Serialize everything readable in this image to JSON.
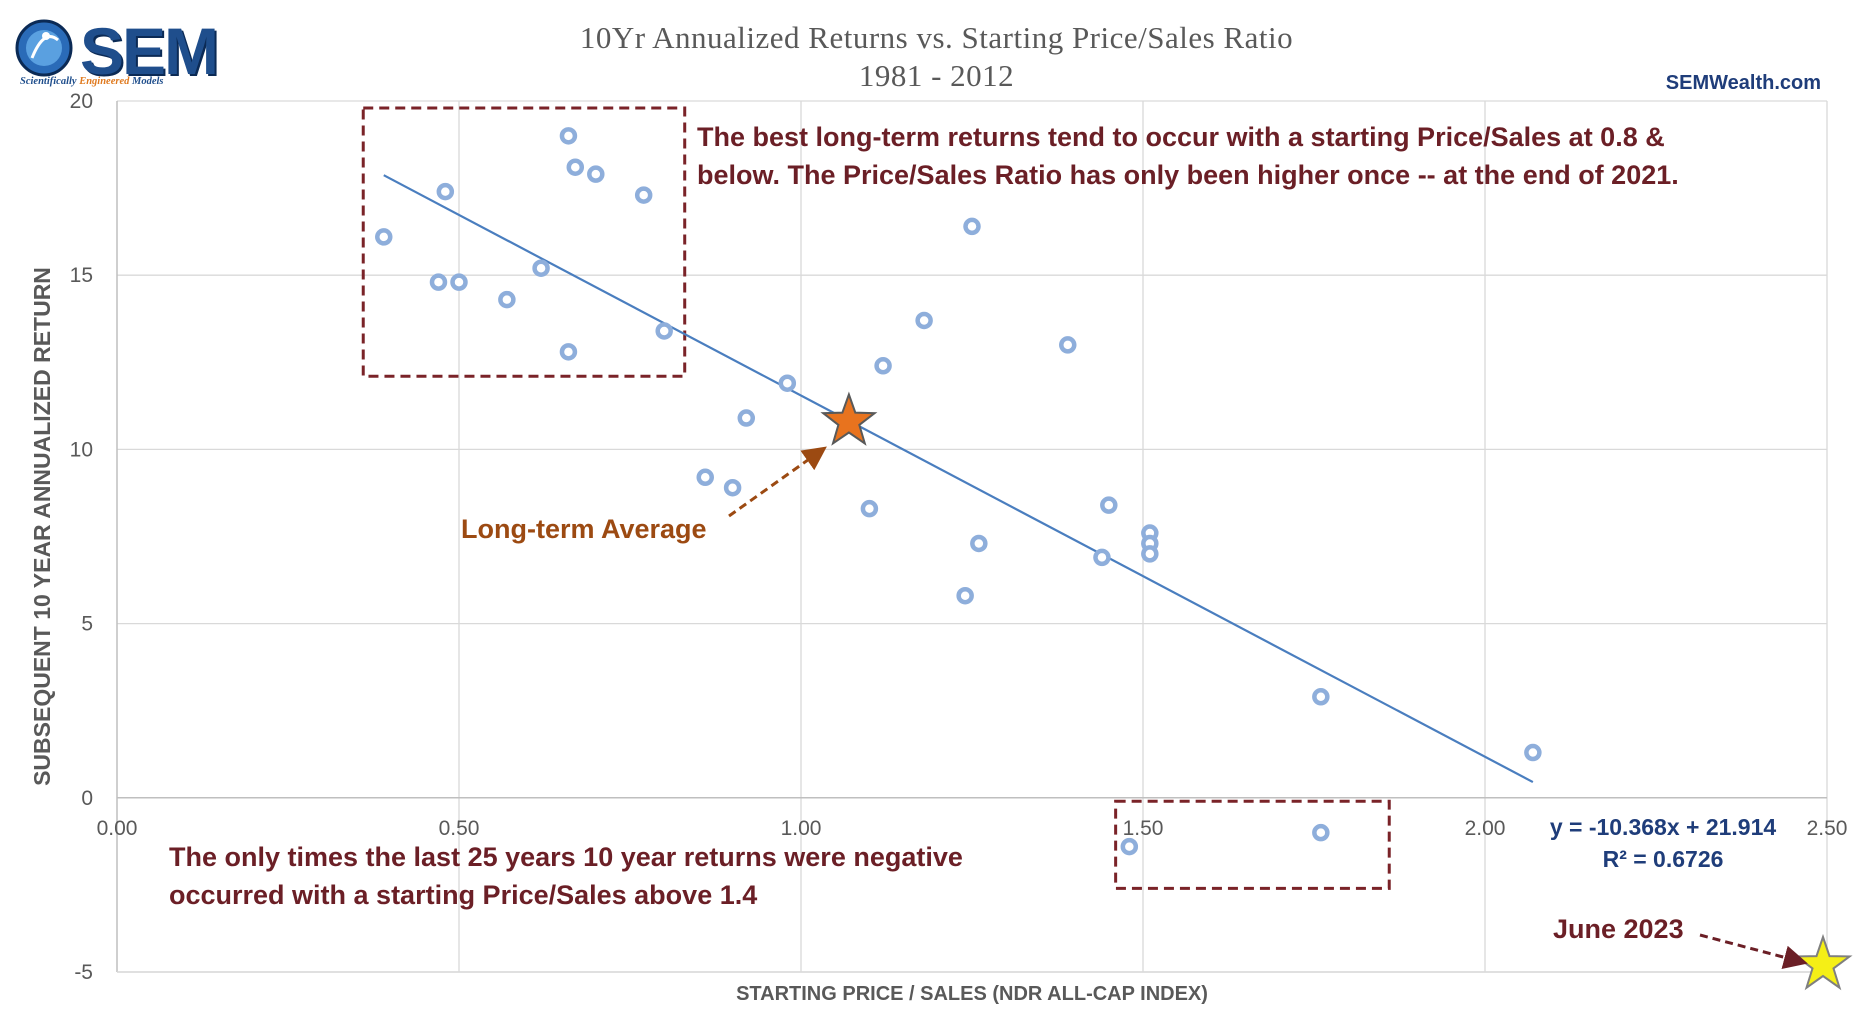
{
  "logo": {
    "name": "SEM",
    "tagline_part1": "Scientifically ",
    "tagline_part2": "Engineered",
    "tagline_part3": " Models"
  },
  "site": "SEMWealth.com",
  "colors": {
    "points": "#8eaedb",
    "trendline": "#4a7ebf",
    "annotation": "#6b1f26",
    "average": "#9c4a12",
    "equation": "#1f3d7a",
    "gridline": "#d9d9d9",
    "avg_star": "#e8731e",
    "june_star": "#f5ef16"
  },
  "annotations": {
    "top_line1": "The best long-term returns tend to occur with a starting Price/Sales at 0.8 &",
    "top_line2": "below. The Price/Sales Ratio has only been higher once -- at the end of 2021.",
    "bottom_line1": "The only times the last 25 years 10 year returns were negative",
    "bottom_line2": "occurred with a starting Price/Sales above 1.4",
    "average_label": "Long-term Average",
    "june_label": "June 2023",
    "equation": "y = -10.368x + 21.914",
    "r_squared": "R² = 0.6726"
  },
  "chart_data": {
    "type": "scatter",
    "title": "10Yr Annualized Returns vs. Starting Price/Sales Ratio",
    "subtitle": "1981 - 2012",
    "xlabel": "STARTING PRICE / SALES (NDR ALL-CAP INDEX)",
    "ylabel": "SUBSEQUENT 10 YEAR ANNUALIZED RETURN",
    "xlim": [
      0,
      2.5
    ],
    "ylim": [
      -5,
      20
    ],
    "x_ticks": [
      0,
      0.5,
      1,
      1.5,
      2,
      2.5
    ],
    "x_tick_labels": [
      "0.00",
      "0.50",
      "1.00",
      "1.50",
      "2.00",
      "2.50"
    ],
    "y_ticks": [
      -5,
      0,
      5,
      10,
      15,
      20
    ],
    "y_tick_labels": [
      "-5",
      "0",
      "5",
      "10",
      "15",
      "20"
    ],
    "grid": true,
    "series": [
      {
        "name": "10Yr Annualized Return",
        "points": [
          [
            0.39,
            16.1
          ],
          [
            0.47,
            14.8
          ],
          [
            0.48,
            17.4
          ],
          [
            0.5,
            14.8
          ],
          [
            0.57,
            14.3
          ],
          [
            0.62,
            15.2
          ],
          [
            0.66,
            19.0
          ],
          [
            0.66,
            12.8
          ],
          [
            0.67,
            18.1
          ],
          [
            0.7,
            17.9
          ],
          [
            0.77,
            17.3
          ],
          [
            0.8,
            13.4
          ],
          [
            0.86,
            9.2
          ],
          [
            0.9,
            8.9
          ],
          [
            0.92,
            10.9
          ],
          [
            0.98,
            11.9
          ],
          [
            1.1,
            8.3
          ],
          [
            1.12,
            12.4
          ],
          [
            1.18,
            13.7
          ],
          [
            1.24,
            5.8
          ],
          [
            1.25,
            16.4
          ],
          [
            1.26,
            7.3
          ],
          [
            1.39,
            13.0
          ],
          [
            1.44,
            6.9
          ],
          [
            1.45,
            8.4
          ],
          [
            1.48,
            -1.4
          ],
          [
            1.51,
            7.6
          ],
          [
            1.51,
            7.3
          ],
          [
            1.51,
            7.0
          ],
          [
            1.76,
            2.9
          ],
          [
            1.76,
            -1.0
          ],
          [
            2.07,
            1.3
          ]
        ]
      }
    ],
    "trendline": {
      "slope": -10.368,
      "intercept": 21.914,
      "x_range": [
        0.39,
        2.07
      ],
      "r_squared": 0.6726
    },
    "long_term_average": {
      "x": 1.07,
      "y": 10.8
    },
    "june_2023": {
      "x": 2.5,
      "y": -4.8
    },
    "highlight_boxes": [
      {
        "label": "low price/sales region",
        "x_range": [
          0.36,
          0.83
        ],
        "y_range": [
          12.1,
          19.8
        ]
      },
      {
        "label": "negative returns region",
        "x_range": [
          1.46,
          1.86
        ],
        "y_range": [
          -2.6,
          -0.1
        ]
      }
    ]
  }
}
